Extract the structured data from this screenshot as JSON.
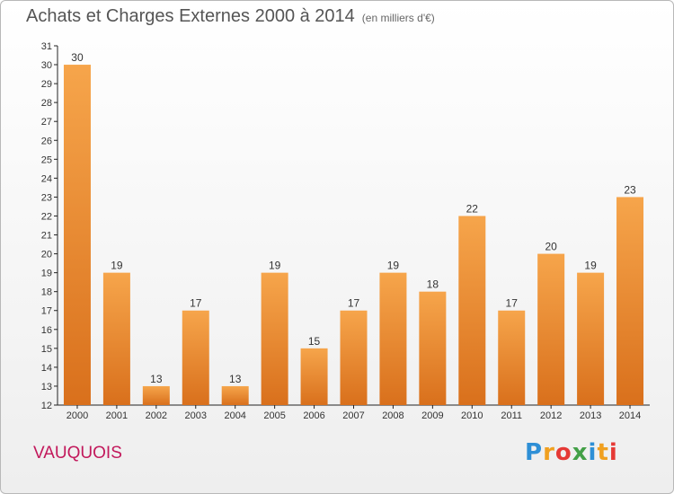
{
  "header": {
    "title": "Achats et Charges Externes 2000 à 2014",
    "subtitle": "(en milliers d'€)"
  },
  "footer": {
    "place": "VAUQUOIS",
    "logo_letters": [
      "P",
      "r",
      "o",
      "x",
      "i",
      "t",
      "i"
    ],
    "logo_colors": [
      "#2e8fd6",
      "#f0a020",
      "#e53935",
      "#43a047",
      "#2e8fd6",
      "#f0a020",
      "#e53935"
    ]
  },
  "chart_data": {
    "type": "bar",
    "title": "Achats et Charges Externes 2000 à 2014",
    "subtitle": "(en milliers d'€)",
    "categories": [
      "2000",
      "2001",
      "2002",
      "2003",
      "2004",
      "2005",
      "2006",
      "2007",
      "2008",
      "2009",
      "2010",
      "2011",
      "2012",
      "2013",
      "2014"
    ],
    "values": [
      30,
      19,
      13,
      17,
      13,
      19,
      15,
      17,
      19,
      18,
      22,
      17,
      20,
      19,
      23
    ],
    "ylim": [
      12,
      31
    ],
    "yticks": [
      12,
      13,
      14,
      15,
      16,
      17,
      18,
      19,
      20,
      21,
      22,
      23,
      24,
      25,
      26,
      27,
      28,
      29,
      30,
      31
    ],
    "xlabel": "",
    "ylabel": "",
    "grid": false,
    "colors": {
      "bar_light": "#f6a54b",
      "bar_dark": "#d9701c",
      "axis": "#222222"
    }
  }
}
